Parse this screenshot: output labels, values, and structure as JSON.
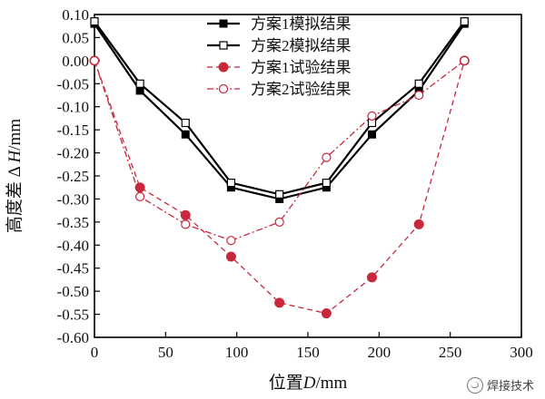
{
  "chart_data": {
    "type": "line",
    "xlabel_prefix": "位置",
    "xlabel_var": "D",
    "xlabel_unit": "/mm",
    "ylabel_prefix": "高度差 Δ ",
    "ylabel_var": "H",
    "ylabel_unit": "/mm",
    "xlim": [
      0,
      300
    ],
    "ylim": [
      -0.6,
      0.1
    ],
    "xticks": [
      0,
      50,
      100,
      150,
      200,
      250,
      300
    ],
    "xtick_labels": [
      "0",
      "50",
      "100",
      "150",
      "200",
      "250",
      "300"
    ],
    "yticks": [
      0.1,
      0.05,
      0.0,
      -0.05,
      -0.1,
      -0.15,
      -0.2,
      -0.25,
      -0.3,
      -0.35,
      -0.4,
      -0.45,
      -0.5,
      -0.55,
      -0.6
    ],
    "ytick_labels": [
      "0.10",
      "0.05",
      "0.00",
      "-0.05",
      "-0.10",
      "-0.15",
      "-0.20",
      "-0.25",
      "-0.30",
      "-0.35",
      "-0.40",
      "-0.45",
      "-0.50",
      "-0.55",
      "-0.60"
    ],
    "grid": false,
    "legend_position": "top-center",
    "series": [
      {
        "name": "方案1模拟结果",
        "x": [
          0,
          32,
          64,
          96,
          130,
          163,
          195,
          228,
          260
        ],
        "y": [
          0.08,
          -0.065,
          -0.16,
          -0.275,
          -0.3,
          -0.275,
          -0.16,
          -0.065,
          0.08
        ],
        "color": "#000000",
        "line": "solid",
        "marker": "filled-square"
      },
      {
        "name": "方案2模拟结果",
        "x": [
          0,
          32,
          64,
          96,
          130,
          163,
          195,
          228,
          260
        ],
        "y": [
          0.085,
          -0.05,
          -0.135,
          -0.265,
          -0.29,
          -0.265,
          -0.135,
          -0.05,
          0.085
        ],
        "color": "#000000",
        "line": "solid",
        "marker": "open-square"
      },
      {
        "name": "方案1试验结果",
        "x": [
          0,
          32,
          64,
          96,
          130,
          163,
          195,
          228,
          260
        ],
        "y": [
          0.0,
          -0.275,
          -0.335,
          -0.425,
          -0.525,
          -0.548,
          -0.47,
          -0.355,
          0.0
        ],
        "color": "#c8283c",
        "line": "dashed",
        "marker": "filled-circle"
      },
      {
        "name": "方案2试验结果",
        "x": [
          0,
          32,
          64,
          96,
          130,
          163,
          195,
          228,
          260
        ],
        "y": [
          0.0,
          -0.295,
          -0.355,
          -0.39,
          -0.35,
          -0.21,
          -0.12,
          -0.075,
          0.0
        ],
        "color": "#c8283c",
        "line": "dashdot",
        "marker": "open-circle"
      }
    ]
  },
  "watermark": {
    "text": "焊接技术",
    "icon": "wechat-icon"
  }
}
